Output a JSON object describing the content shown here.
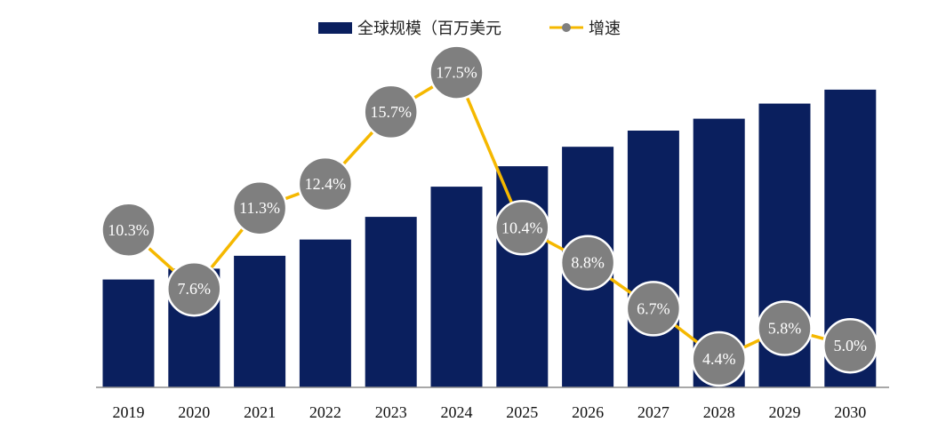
{
  "legend": {
    "bar_label": "全球规模（百万美元",
    "line_label": "增速"
  },
  "colors": {
    "bar": "#0a1f5e",
    "line": "#f5b800",
    "marker": "#7f7f7f",
    "marker_stroke": "#ffffff",
    "axis": "#8c8c8c"
  },
  "chart_data": {
    "type": "bar",
    "categories": [
      "2019",
      "2020",
      "2021",
      "2022",
      "2023",
      "2024",
      "2025",
      "2026",
      "2027",
      "2028",
      "2029",
      "2030"
    ],
    "series": [
      {
        "type": "bar",
        "name": "全球规模（百万美元",
        "values": [
          100,
          110,
          122,
          137,
          158,
          186,
          205,
          223,
          238,
          249,
          263,
          276
        ]
      },
      {
        "type": "line",
        "name": "增速",
        "values": [
          10.3,
          7.6,
          11.3,
          12.4,
          15.7,
          17.5,
          10.4,
          8.8,
          6.7,
          4.4,
          5.8,
          5.0
        ],
        "labels": [
          "10.3%",
          "7.6%",
          "11.3%",
          "12.4%",
          "15.7%",
          "17.5%",
          "10.4%",
          "8.8%",
          "6.7%",
          "4.4%",
          "5.8%",
          "5.0%"
        ]
      }
    ],
    "ylim": [
      0,
      280
    ],
    "y2lim": [
      0,
      18.5
    ],
    "grid": false,
    "legend_position": "top-center"
  }
}
